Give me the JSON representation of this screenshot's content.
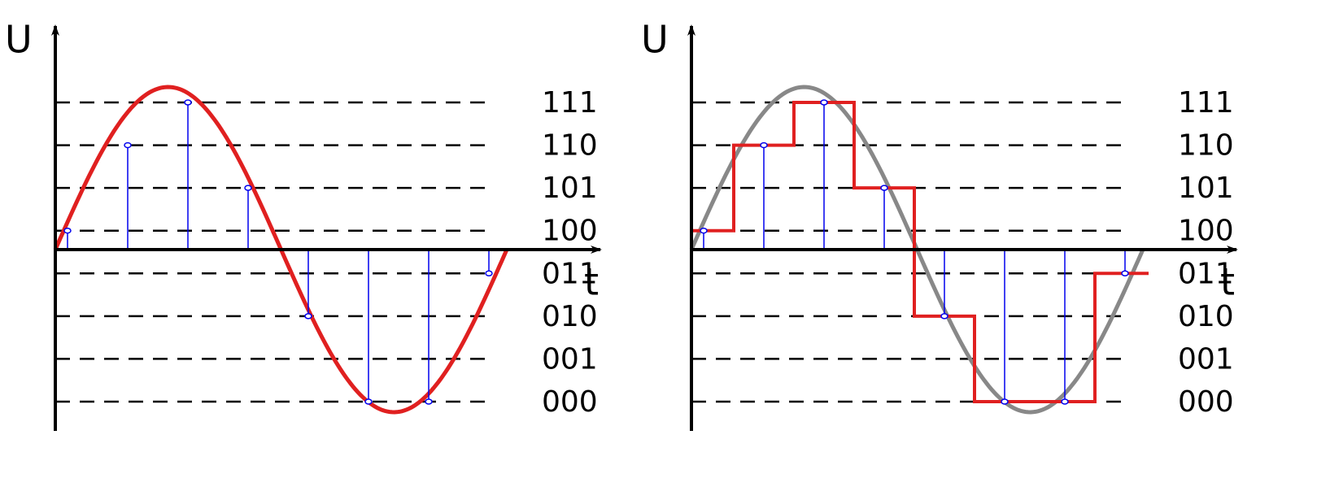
{
  "panels": [
    {
      "y_axis_label": "U",
      "x_axis_label": "t",
      "levels": [
        "111",
        "110",
        "101",
        "100",
        "011",
        "010",
        "001",
        "000"
      ]
    },
    {
      "y_axis_label": "U",
      "x_axis_label": "t",
      "levels": [
        "111",
        "110",
        "101",
        "100",
        "011",
        "010",
        "001",
        "000"
      ]
    }
  ]
}
